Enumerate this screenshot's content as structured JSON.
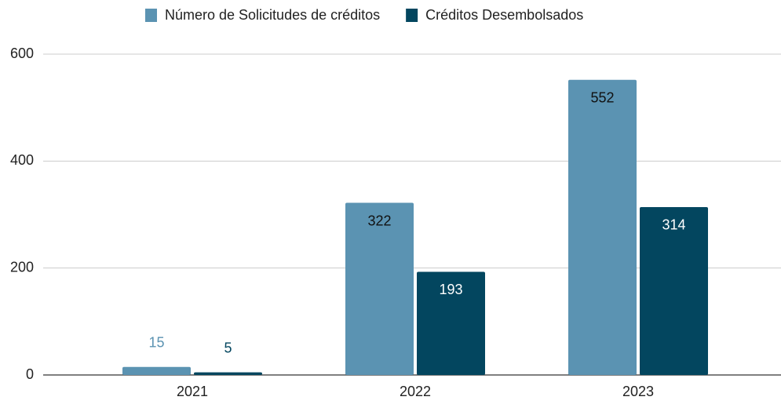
{
  "chart_data": {
    "type": "bar",
    "categories": [
      "2021",
      "2022",
      "2023"
    ],
    "series": [
      {
        "name": "Número de Solicitudes de créditos",
        "color": "#5b93b2",
        "values": [
          15,
          322,
          552
        ]
      },
      {
        "name": "Créditos Desembolsados",
        "color": "#03465f",
        "values": [
          5,
          193,
          314
        ]
      }
    ],
    "ylim": [
      0,
      600
    ],
    "yticks": [
      0,
      200,
      400,
      600
    ],
    "grid": true,
    "legend": "top"
  }
}
